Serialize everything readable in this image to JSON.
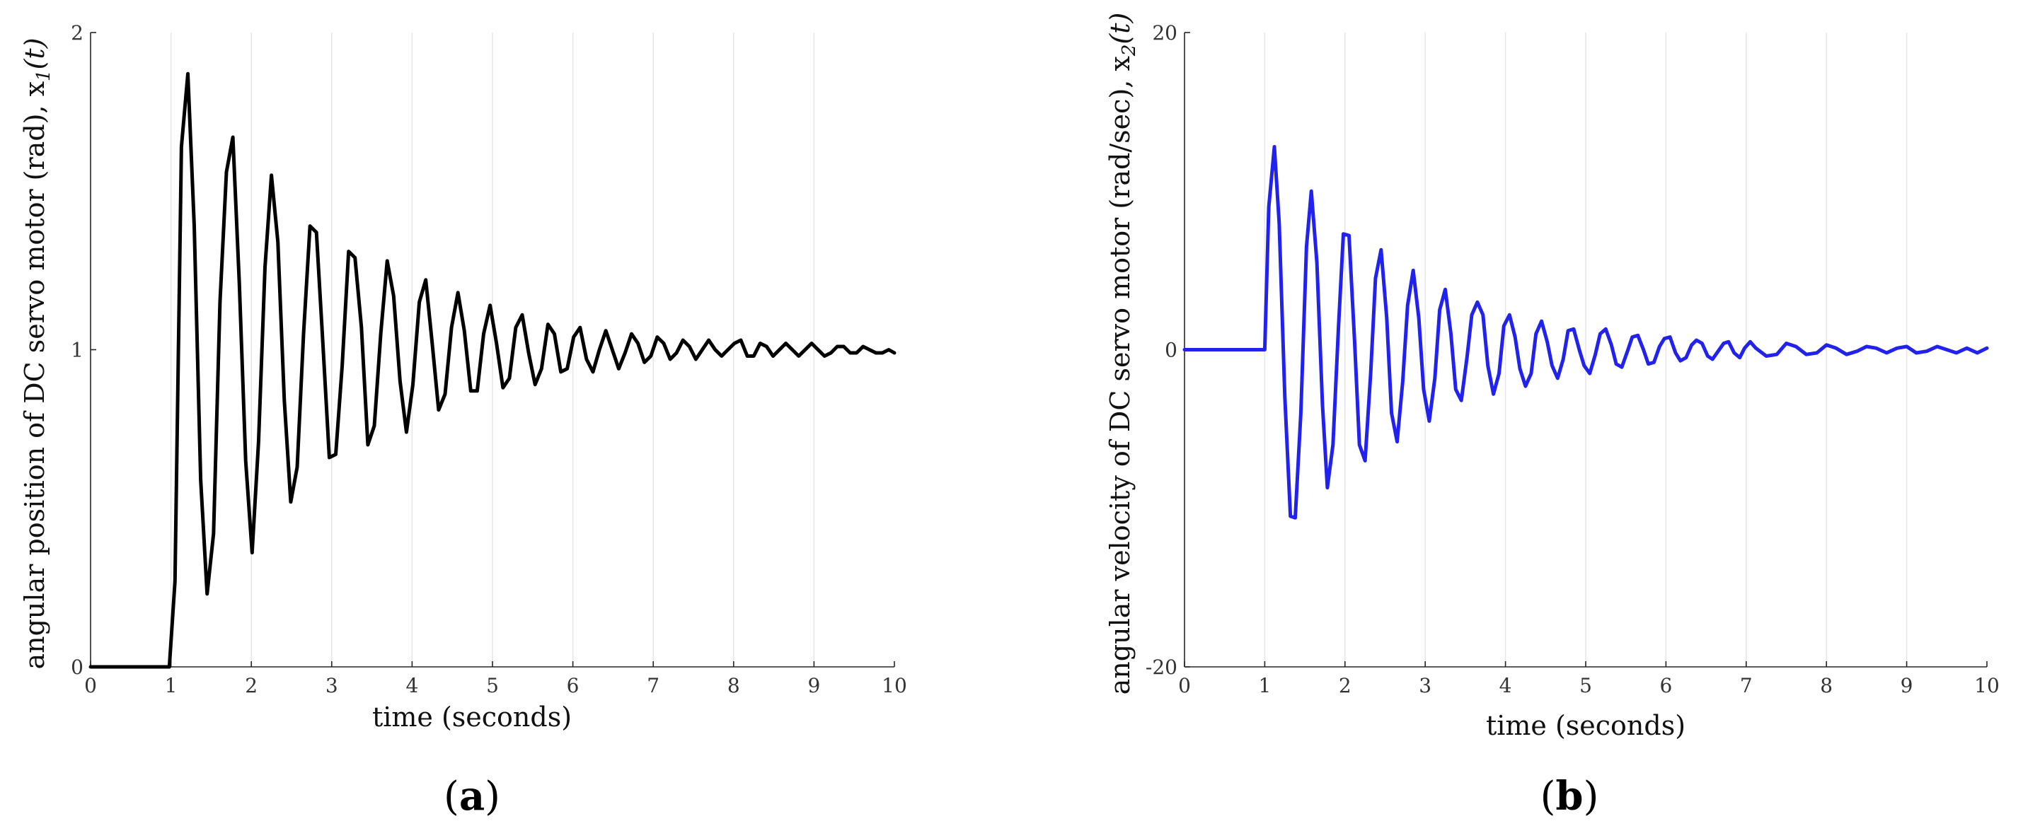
{
  "chart_data": [
    {
      "type": "line",
      "panel_label": "a",
      "xlabel": "time (seconds)",
      "ylabel": "angular position of DC servo motor (rad), x",
      "ylabel_sub": "1",
      "ylabel_tail": "(t)",
      "xlim": [
        0,
        10
      ],
      "ylim": [
        0,
        2
      ],
      "xticks": [
        "0",
        "1",
        "2",
        "3",
        "4",
        "5",
        "6",
        "7",
        "8",
        "9",
        "10"
      ],
      "yticks": [
        "0",
        "1",
        "2"
      ],
      "grid": "vertical",
      "color": "#000000",
      "x": [
        0,
        0.98,
        1.05,
        1.13,
        1.21,
        1.29,
        1.37,
        1.45,
        1.53,
        1.61,
        1.69,
        1.77,
        1.85,
        1.93,
        2.01,
        2.09,
        2.17,
        2.25,
        2.33,
        2.41,
        2.49,
        2.57,
        2.65,
        2.73,
        2.81,
        2.89,
        2.97,
        3.05,
        3.13,
        3.21,
        3.29,
        3.37,
        3.45,
        3.53,
        3.61,
        3.69,
        3.77,
        3.85,
        3.93,
        4.01,
        4.09,
        4.17,
        4.25,
        4.33,
        4.41,
        4.49,
        4.57,
        4.65,
        4.73,
        4.81,
        4.89,
        4.97,
        5.05,
        5.13,
        5.21,
        5.29,
        5.37,
        5.45,
        5.53,
        5.61,
        5.69,
        5.77,
        5.85,
        5.93,
        6.01,
        6.09,
        6.17,
        6.25,
        6.33,
        6.41,
        6.49,
        6.57,
        6.65,
        6.73,
        6.81,
        6.89,
        6.97,
        7.05,
        7.13,
        7.21,
        7.29,
        7.37,
        7.45,
        7.53,
        7.61,
        7.69,
        7.77,
        7.85,
        7.93,
        8.01,
        8.09,
        8.17,
        8.25,
        8.33,
        8.41,
        8.49,
        8.57,
        8.65,
        8.73,
        8.81,
        8.89,
        8.97,
        9.05,
        9.13,
        9.21,
        9.29,
        9.37,
        9.45,
        9.53,
        9.61,
        9.69,
        9.77,
        9.85,
        9.93,
        10
      ],
      "y": [
        0,
        0,
        0.27,
        1.64,
        1.87,
        1.39,
        0.59,
        0.23,
        0.42,
        1.15,
        1.56,
        1.67,
        1.21,
        0.65,
        0.36,
        0.71,
        1.26,
        1.55,
        1.34,
        0.84,
        0.52,
        0.63,
        1.05,
        1.39,
        1.37,
        1.02,
        0.66,
        0.67,
        0.95,
        1.31,
        1.29,
        1.07,
        0.7,
        0.76,
        1.05,
        1.28,
        1.17,
        0.9,
        0.74,
        0.89,
        1.15,
        1.22,
        1.02,
        0.81,
        0.86,
        1.07,
        1.18,
        1.06,
        0.87,
        0.87,
        1.05,
        1.14,
        1.02,
        0.88,
        0.91,
        1.07,
        1.11,
        0.99,
        0.89,
        0.94,
        1.08,
        1.05,
        0.93,
        0.94,
        1.04,
        1.07,
        0.97,
        0.93,
        1.0,
        1.06,
        1.0,
        0.94,
        0.99,
        1.05,
        1.02,
        0.96,
        0.98,
        1.04,
        1.02,
        0.97,
        0.99,
        1.03,
        1.01,
        0.97,
        1.0,
        1.03,
        1.0,
        0.98,
        1.0,
        1.02,
        1.03,
        0.98,
        0.98,
        1.02,
        1.01,
        0.98,
        1.0,
        1.02,
        1.0,
        0.98,
        1.0,
        1.02,
        1.0,
        0.98,
        0.99,
        1.01,
        1.01,
        0.99,
        0.99,
        1.01,
        1.0,
        0.99,
        0.99,
        1.0,
        0.99
      ]
    },
    {
      "type": "line",
      "panel_label": "b",
      "xlabel": "time (seconds)",
      "ylabel": "angular velocity of DC servo motor (rad/sec), x",
      "ylabel_sub": "2",
      "ylabel_tail": "(t)",
      "xlim": [
        0,
        10
      ],
      "ylim": [
        -20,
        20
      ],
      "xticks": [
        "0",
        "1",
        "2",
        "3",
        "4",
        "5",
        "6",
        "7",
        "8",
        "9",
        "10"
      ],
      "yticks": [
        "-20",
        "0",
        "20"
      ],
      "grid": "vertical",
      "color": "#2222ee",
      "x": [
        0,
        1.0,
        1.05,
        1.12,
        1.18,
        1.25,
        1.32,
        1.38,
        1.45,
        1.52,
        1.58,
        1.65,
        1.72,
        1.78,
        1.85,
        1.92,
        1.98,
        2.05,
        2.12,
        2.18,
        2.25,
        2.32,
        2.38,
        2.45,
        2.52,
        2.58,
        2.65,
        2.72,
        2.78,
        2.85,
        2.92,
        2.98,
        3.05,
        3.12,
        3.18,
        3.25,
        3.32,
        3.38,
        3.45,
        3.52,
        3.58,
        3.65,
        3.72,
        3.78,
        3.85,
        3.92,
        3.98,
        4.05,
        4.12,
        4.18,
        4.25,
        4.32,
        4.38,
        4.45,
        4.52,
        4.58,
        4.65,
        4.72,
        4.78,
        4.85,
        4.92,
        4.98,
        5.05,
        5.12,
        5.18,
        5.25,
        5.32,
        5.38,
        5.45,
        5.52,
        5.58,
        5.65,
        5.72,
        5.78,
        5.85,
        5.92,
        5.98,
        6.05,
        6.12,
        6.18,
        6.25,
        6.32,
        6.38,
        6.45,
        6.52,
        6.58,
        6.65,
        6.72,
        6.78,
        6.85,
        6.92,
        6.98,
        7.05,
        7.12,
        7.25,
        7.38,
        7.5,
        7.62,
        7.75,
        7.88,
        8.0,
        8.12,
        8.25,
        8.38,
        8.5,
        8.62,
        8.75,
        8.88,
        9.0,
        9.12,
        9.25,
        9.38,
        9.5,
        9.62,
        9.75,
        9.88,
        10
      ],
      "y": [
        0,
        0,
        9,
        12.8,
        8,
        -3,
        -10.5,
        -10.6,
        -4,
        6.5,
        10,
        5.5,
        -3.5,
        -8.7,
        -6,
        1.5,
        7.3,
        7.2,
        0.5,
        -6,
        -7,
        -1.5,
        4.5,
        6.3,
        2,
        -4,
        -5.8,
        -2,
        2.8,
        5,
        2,
        -2.5,
        -4.5,
        -1.8,
        2.5,
        3.8,
        1,
        -2.5,
        -3.2,
        -0.5,
        2.2,
        3,
        2.2,
        -1,
        -2.8,
        -1.5,
        1.5,
        2.2,
        0.8,
        -1.2,
        -2.3,
        -1.5,
        1,
        1.8,
        0.5,
        -1,
        -1.8,
        -0.6,
        1.2,
        1.3,
        0,
        -1,
        -1.5,
        -0.3,
        1,
        1.3,
        0.3,
        -0.9,
        -1.1,
        -0.1,
        0.8,
        0.9,
        0,
        -0.9,
        -0.8,
        0.2,
        0.7,
        0.8,
        -0.2,
        -0.7,
        -0.5,
        0.3,
        0.6,
        0.4,
        -0.4,
        -0.6,
        -0.1,
        0.4,
        0.5,
        -0.2,
        -0.5,
        0.1,
        0.5,
        0.1,
        -0.4,
        -0.3,
        0.4,
        0.2,
        -0.3,
        -0.2,
        0.3,
        0.1,
        -0.3,
        -0.1,
        0.2,
        0.1,
        -0.2,
        0.1,
        0.2,
        -0.2,
        -0.1,
        0.2,
        0,
        -0.2,
        0.1,
        -0.2,
        0.1
      ]
    }
  ]
}
